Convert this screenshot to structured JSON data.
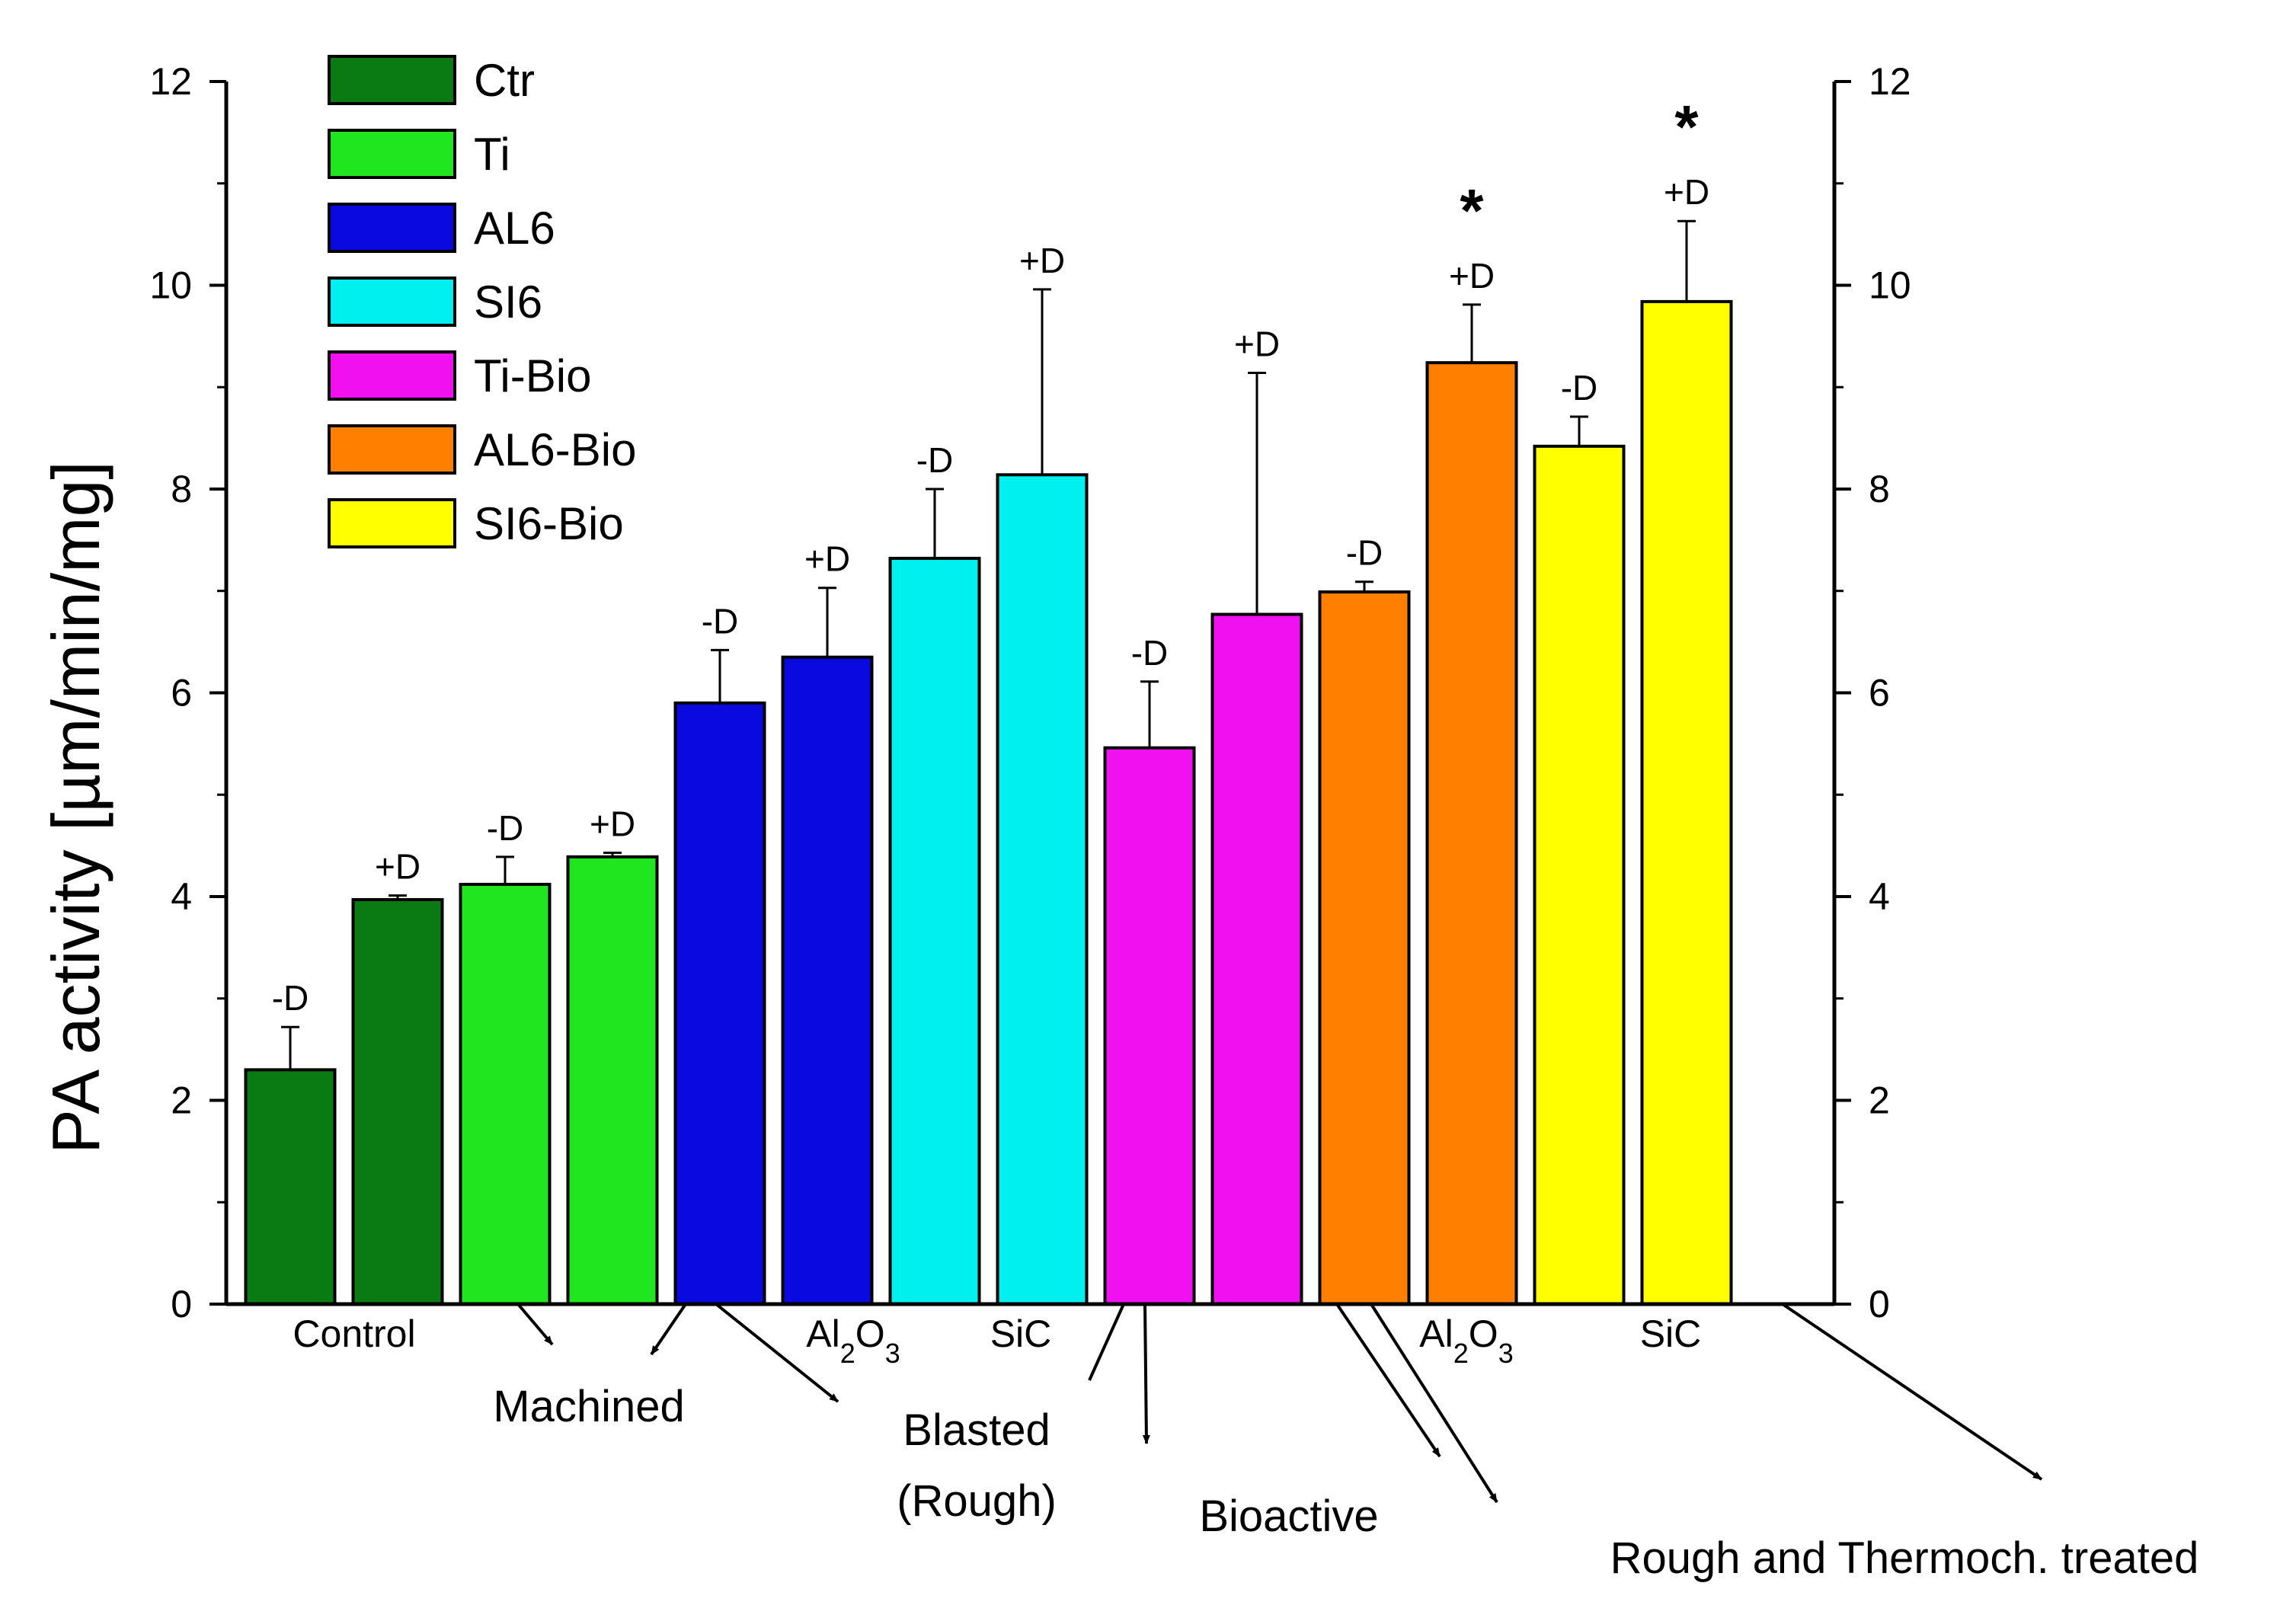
{
  "chart_data": {
    "type": "bar",
    "ylabel": "PA activity [µm/min/mg]",
    "ylim": [
      0,
      12
    ],
    "yticks": [
      "0",
      "2",
      "4",
      "6",
      "8",
      "10",
      "12"
    ],
    "secondary_axis": "right",
    "legend_position": "top-left",
    "legend": [
      {
        "name": "Ctr",
        "color": "#0a7a12"
      },
      {
        "name": "Ti",
        "color": "#20e620"
      },
      {
        "name": "AL6",
        "color": "#0a0ae0"
      },
      {
        "name": "SI6",
        "color": "#00f0f0"
      },
      {
        "name": "Ti-Bio",
        "color": "#f010f0"
      },
      {
        "name": "AL6-Bio",
        "color": "#ff7f00"
      },
      {
        "name": "SI6-Bio",
        "color": "#ffff00"
      }
    ],
    "bars": [
      {
        "series": "Ctr",
        "label": "-D",
        "value": 2.3,
        "error": 0.42,
        "significant": false
      },
      {
        "series": "Ctr",
        "label": "+D",
        "value": 3.97,
        "error": 0.04,
        "significant": false
      },
      {
        "series": "Ti",
        "label": "-D",
        "value": 4.12,
        "error": 0.27,
        "significant": false
      },
      {
        "series": "Ti",
        "label": "+D",
        "value": 4.39,
        "error": 0.04,
        "significant": false
      },
      {
        "series": "AL6",
        "label": "-D",
        "value": 5.9,
        "error": 0.52,
        "significant": false
      },
      {
        "series": "AL6",
        "label": "+D",
        "value": 6.35,
        "error": 0.68,
        "significant": false
      },
      {
        "series": "SI6",
        "label": "-D",
        "value": 7.32,
        "error": 0.68,
        "significant": false
      },
      {
        "series": "SI6",
        "label": "+D",
        "value": 8.14,
        "error": 1.82,
        "significant": false
      },
      {
        "series": "Ti-Bio",
        "label": "-D",
        "value": 5.46,
        "error": 0.65,
        "significant": false
      },
      {
        "series": "Ti-Bio",
        "label": "+D",
        "value": 6.77,
        "error": 2.37,
        "significant": false
      },
      {
        "series": "AL6-Bio",
        "label": "-D",
        "value": 6.99,
        "error": 0.1,
        "significant": false
      },
      {
        "series": "AL6-Bio",
        "label": "+D",
        "value": 9.24,
        "error": 0.57,
        "significant": true
      },
      {
        "series": "SI6-Bio",
        "label": "-D",
        "value": 8.42,
        "error": 0.29,
        "significant": false
      },
      {
        "series": "SI6-Bio",
        "label": "+D",
        "value": 9.84,
        "error": 0.79,
        "significant": true
      }
    ],
    "star_symbol": "*",
    "category_labels": [
      "Control",
      "Al2O3",
      "SiC",
      "Al2O3",
      "SiC"
    ],
    "group_labels": {
      "machined": "Machined",
      "blasted_1": "Blasted",
      "blasted_2": "(Rough)",
      "bioactive": "Bioactive",
      "thermo": "Rough and Thermoch. treated"
    }
  }
}
